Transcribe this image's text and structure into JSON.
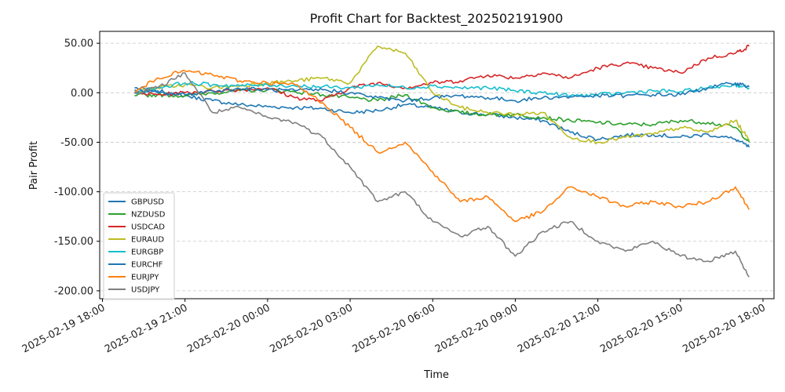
{
  "chart_data": {
    "type": "line",
    "title": "Profit Chart for Backtest_202502191900",
    "xlabel": "Time",
    "ylabel": "Pair Profit",
    "x_range": [
      "2025-02-19 17:54",
      "2025-02-20 18:24"
    ],
    "ylim": [
      -208,
      62
    ],
    "yticks": [
      50,
      0,
      -50,
      -100,
      -150,
      -200
    ],
    "ytick_labels": [
      "50.00",
      "0.00",
      "-50.00",
      "-100.00",
      "-150.00",
      "-200.00"
    ],
    "xticks": [
      "2025-02-19 18:00",
      "2025-02-19 21:00",
      "2025-02-20 00:00",
      "2025-02-20 03:00",
      "2025-02-20 06:00",
      "2025-02-20 09:00",
      "2025-02-20 12:00",
      "2025-02-20 15:00",
      "2025-02-20 18:00"
    ],
    "grid": "horizontal dashed",
    "legend_position": "lower-left",
    "x": [
      "2025-02-19 19:10",
      "2025-02-19 20:00",
      "2025-02-19 21:00",
      "2025-02-19 22:00",
      "2025-02-19 23:00",
      "2025-02-20 00:00",
      "2025-02-20 01:00",
      "2025-02-20 02:00",
      "2025-02-20 03:00",
      "2025-02-20 04:00",
      "2025-02-20 05:00",
      "2025-02-20 06:00",
      "2025-02-20 07:00",
      "2025-02-20 08:00",
      "2025-02-20 09:00",
      "2025-02-20 10:00",
      "2025-02-20 11:00",
      "2025-02-20 12:00",
      "2025-02-20 13:00",
      "2025-02-20 14:00",
      "2025-02-20 15:00",
      "2025-02-20 16:00",
      "2025-02-20 17:00",
      "2025-02-20 17:30"
    ],
    "series": [
      {
        "name": "GBPUSD",
        "color": "#1f77b4",
        "values": [
          5,
          2,
          -3,
          -8,
          -12,
          -14,
          -15,
          -16,
          -20,
          -18,
          -12,
          -15,
          -20,
          -22,
          -25,
          -28,
          -40,
          -47,
          -43,
          -42,
          -45,
          -42,
          -47,
          -55
        ]
      },
      {
        "name": "NZDUSD",
        "color": "#2ca02c",
        "values": [
          -3,
          -2,
          -3,
          0,
          2,
          3,
          1,
          -2,
          -5,
          -8,
          -2,
          -15,
          -20,
          -22,
          -22,
          -25,
          -28,
          -30,
          -32,
          -32,
          -28,
          -30,
          -35,
          -50
        ]
      },
      {
        "name": "USDCAD",
        "color": "#d62728",
        "values": [
          0,
          -2,
          0,
          2,
          3,
          5,
          -5,
          -8,
          5,
          10,
          5,
          10,
          12,
          18,
          15,
          20,
          15,
          25,
          30,
          25,
          20,
          35,
          40,
          47
        ]
      },
      {
        "name": "EURAUD",
        "color": "#bcbd22",
        "values": [
          0,
          5,
          8,
          5,
          7,
          10,
          12,
          15,
          10,
          47,
          40,
          0,
          -15,
          -20,
          -22,
          -20,
          -45,
          -50,
          -45,
          -42,
          -35,
          -40,
          -28,
          -48
        ]
      },
      {
        "name": "EURGBP",
        "color": "#17becf",
        "values": [
          0,
          5,
          10,
          8,
          7,
          8,
          7,
          6,
          5,
          8,
          5,
          7,
          5,
          5,
          2,
          0,
          -3,
          -2,
          0,
          2,
          1,
          5,
          8,
          5
        ]
      },
      {
        "name": "EURCHF",
        "color": "#1f77b4",
        "values": [
          3,
          0,
          -2,
          2,
          4,
          3,
          2,
          3,
          0,
          -5,
          -8,
          -5,
          -3,
          -5,
          -8,
          -5,
          -4,
          -3,
          -3,
          -2,
          -2,
          5,
          10,
          6
        ]
      },
      {
        "name": "EURJPY",
        "color": "#ff7f0e",
        "values": [
          0,
          15,
          22,
          18,
          12,
          10,
          8,
          -10,
          -35,
          -60,
          -50,
          -80,
          -110,
          -105,
          -130,
          -120,
          -95,
          -105,
          -115,
          -110,
          -115,
          -110,
          -95,
          -118
        ]
      },
      {
        "name": "USDJPY",
        "color": "#7f7f7f",
        "values": [
          0,
          5,
          20,
          -20,
          -15,
          -25,
          -30,
          -45,
          -75,
          -110,
          -100,
          -130,
          -145,
          -135,
          -165,
          -140,
          -130,
          -150,
          -160,
          -150,
          -165,
          -170,
          -160,
          -186
        ]
      }
    ]
  }
}
